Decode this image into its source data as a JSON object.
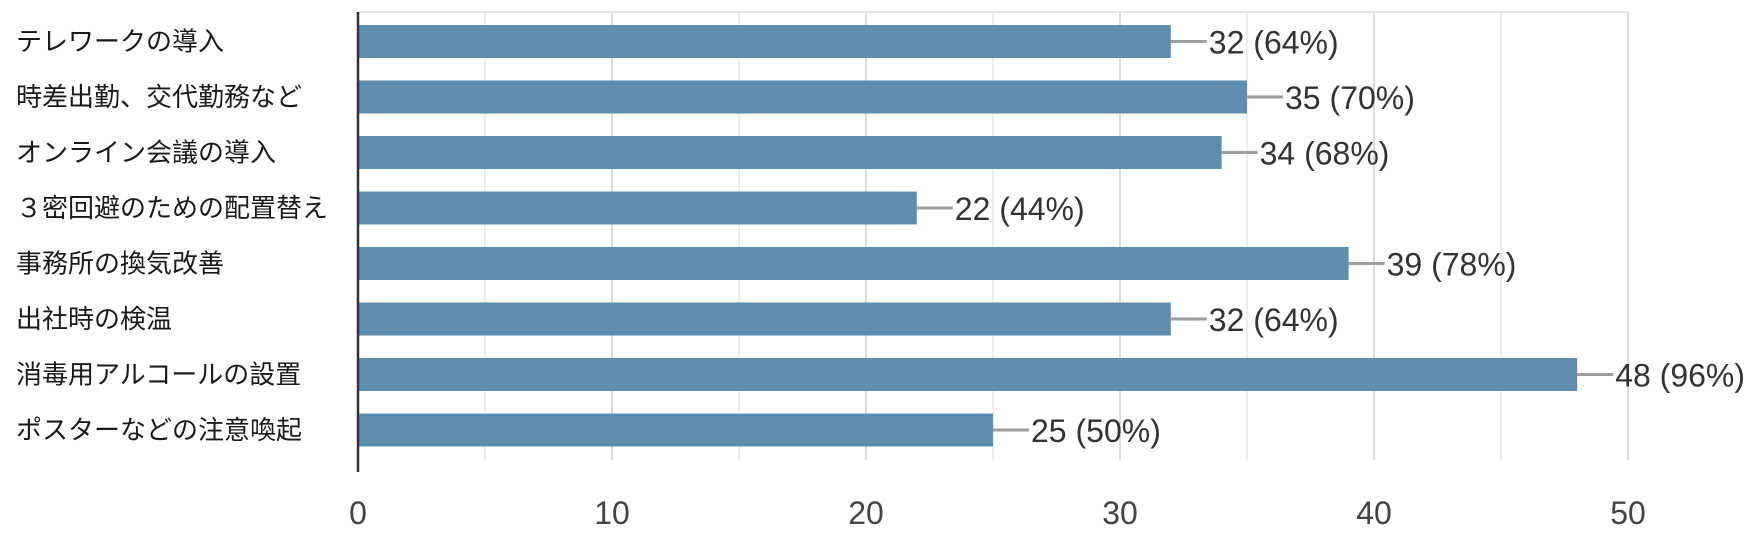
{
  "chart_data": {
    "type": "bar",
    "orientation": "horizontal",
    "categories": [
      "テレワークの導入",
      "時差出勤、交代勤務など",
      "オンライン会議の導入",
      "３密回避のための配置替え",
      "事務所の換気改善",
      "出社時の検温",
      "消毒用アルコールの設置",
      "ポスターなどの注意喚起"
    ],
    "values": [
      32,
      35,
      34,
      22,
      39,
      32,
      48,
      25
    ],
    "value_labels": [
      "32 (64%)",
      "35 (70%)",
      "34 (68%)",
      "22 (44%)",
      "39 (78%)",
      "32 (64%)",
      "48 (96%)",
      "25 (50%)"
    ],
    "xlim": [
      0,
      50
    ],
    "xticks": [
      0,
      10,
      20,
      30,
      40,
      50
    ],
    "grid": true,
    "bar_color": "#5f8dad",
    "leader_color": "#9e9e9e"
  }
}
